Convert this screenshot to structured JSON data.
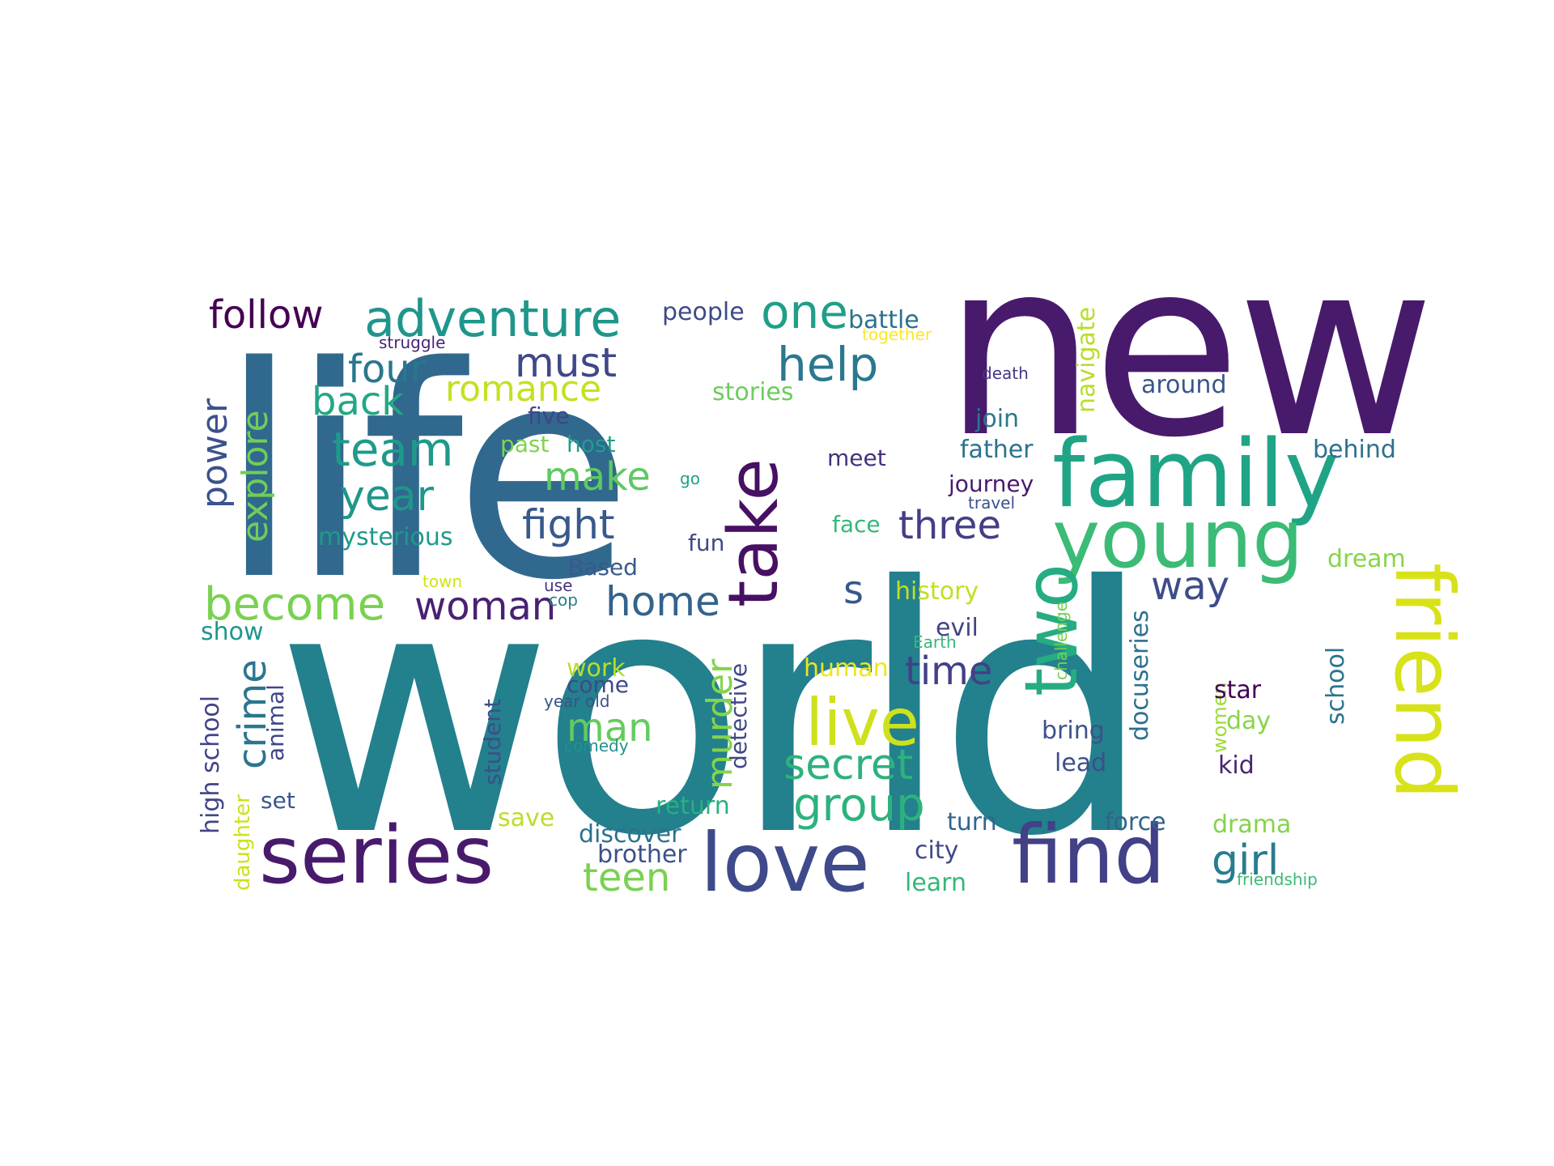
{
  "palette": [
    "#440154",
    "#46327e",
    "#365c8d",
    "#277f8e",
    "#1fa187",
    "#4ac16d",
    "#a0da39",
    "#fde725"
  ],
  "words": [
    {
      "text": "world",
      "color": "#23808d"
    },
    {
      "text": "life",
      "color": "#31688e"
    },
    {
      "text": "new",
      "color": "#481a6c"
    },
    {
      "text": "family",
      "color": "#20a486"
    },
    {
      "text": "young",
      "color": "#3bbb75"
    },
    {
      "text": "friend",
      "color": "#d8e219"
    },
    {
      "text": "two",
      "color": "#25ac82"
    },
    {
      "text": "take",
      "color": "#471063"
    },
    {
      "text": "series",
      "color": "#481a6c"
    },
    {
      "text": "love",
      "color": "#3e4a89"
    },
    {
      "text": "find",
      "color": "#424086"
    },
    {
      "text": "live",
      "color": "#cde11d"
    },
    {
      "text": "adventure",
      "color": "#1f968b"
    },
    {
      "text": "follow",
      "color": "#440154"
    },
    {
      "text": "one",
      "color": "#1f9f88"
    },
    {
      "text": "help",
      "color": "#2a788e"
    },
    {
      "text": "people",
      "color": "#3e4a89"
    },
    {
      "text": "battle",
      "color": "#2c718e"
    },
    {
      "text": "together",
      "color": "#fde725"
    },
    {
      "text": "struggle",
      "color": "#482576"
    },
    {
      "text": "four",
      "color": "#2a768e"
    },
    {
      "text": "must",
      "color": "#3f4889"
    },
    {
      "text": "romance",
      "color": "#c5e021"
    },
    {
      "text": "back",
      "color": "#22a785"
    },
    {
      "text": "stories",
      "color": "#6ccd5a"
    },
    {
      "text": "team",
      "color": "#1f9a8a"
    },
    {
      "text": "five",
      "color": "#414487"
    },
    {
      "text": "past",
      "color": "#7fd34e"
    },
    {
      "text": "host",
      "color": "#1f9e89"
    },
    {
      "text": "year",
      "color": "#1f968b"
    },
    {
      "text": "make",
      "color": "#5ec962"
    },
    {
      "text": "fight",
      "color": "#38598c"
    },
    {
      "text": "mysterious",
      "color": "#1f9a8a"
    },
    {
      "text": "power",
      "color": "#3b528b"
    },
    {
      "text": "explore",
      "color": "#6ece58"
    },
    {
      "text": "become",
      "color": "#7ad151"
    },
    {
      "text": "woman",
      "color": "#482173"
    },
    {
      "text": "home",
      "color": "#33638d"
    },
    {
      "text": "Based",
      "color": "#38598c"
    },
    {
      "text": "fun",
      "color": "#3f4788"
    },
    {
      "text": "go",
      "color": "#1fa088"
    },
    {
      "text": "meet",
      "color": "#46307e"
    },
    {
      "text": "three",
      "color": "#433e85"
    },
    {
      "text": "face",
      "color": "#35b779"
    },
    {
      "text": "journey",
      "color": "#481b6d"
    },
    {
      "text": "travel",
      "color": "#3b528b"
    },
    {
      "text": "death",
      "color": "#443983"
    },
    {
      "text": "join",
      "color": "#2a778e"
    },
    {
      "text": "father",
      "color": "#2c728e"
    },
    {
      "text": "navigate",
      "color": "#b8de29"
    },
    {
      "text": "around",
      "color": "#39568c"
    },
    {
      "text": "behind",
      "color": "#2c718e"
    },
    {
      "text": "way",
      "color": "#3e4c8a"
    },
    {
      "text": "s",
      "color": "#38588c"
    },
    {
      "text": "history",
      "color": "#c2df23"
    },
    {
      "text": "dream",
      "color": "#86d549"
    },
    {
      "text": "show",
      "color": "#1f968b"
    },
    {
      "text": "crime",
      "color": "#2a768e"
    },
    {
      "text": "town",
      "color": "#d2e21b"
    },
    {
      "text": "use",
      "color": "#453581"
    },
    {
      "text": "cop",
      "color": "#277e8e"
    },
    {
      "text": "evil",
      "color": "#414487"
    },
    {
      "text": "Earth",
      "color": "#35b779"
    },
    {
      "text": "challenge",
      "color": "#75d054"
    },
    {
      "text": "time",
      "color": "#424086"
    },
    {
      "text": "work",
      "color": "#b5de2b"
    },
    {
      "text": "come",
      "color": "#3e4989"
    },
    {
      "text": "year old",
      "color": "#3b528b"
    },
    {
      "text": "man",
      "color": "#65cb5e"
    },
    {
      "text": "murder",
      "color": "#84d44b"
    },
    {
      "text": "detective",
      "color": "#404688"
    },
    {
      "text": "human",
      "color": "#f1e51d"
    },
    {
      "text": "secret",
      "color": "#2db27d"
    },
    {
      "text": "docuseries",
      "color": "#2d708e"
    },
    {
      "text": "women",
      "color": "#9fda3a"
    },
    {
      "text": "star",
      "color": "#440154"
    },
    {
      "text": "school",
      "color": "#2c738e"
    },
    {
      "text": "day",
      "color": "#86d549"
    },
    {
      "text": "bring",
      "color": "#3b528b"
    },
    {
      "text": "lead",
      "color": "#3c4f8a"
    },
    {
      "text": "kid",
      "color": "#482475"
    },
    {
      "text": "high school",
      "color": "#414487"
    },
    {
      "text": "animal",
      "color": "#3f4788"
    },
    {
      "text": "student",
      "color": "#3d4e8a"
    },
    {
      "text": "comedy",
      "color": "#21918c"
    },
    {
      "text": "set",
      "color": "#39568c"
    },
    {
      "text": "group",
      "color": "#2db27d"
    },
    {
      "text": "return",
      "color": "#2ab07f"
    },
    {
      "text": "save",
      "color": "#bade28"
    },
    {
      "text": "discover",
      "color": "#2c728e"
    },
    {
      "text": "brother",
      "color": "#3c508b"
    },
    {
      "text": "teen",
      "color": "#7ad151"
    },
    {
      "text": "daughter",
      "color": "#cde11d"
    },
    {
      "text": "city",
      "color": "#3e4a89"
    },
    {
      "text": "turn",
      "color": "#31678e"
    },
    {
      "text": "learn",
      "color": "#35b779"
    },
    {
      "text": "force",
      "color": "#33638d"
    },
    {
      "text": "drama",
      "color": "#84d44b"
    },
    {
      "text": "girl",
      "color": "#287c8e"
    },
    {
      "text": "friendship",
      "color": "#3bbb75"
    }
  ]
}
